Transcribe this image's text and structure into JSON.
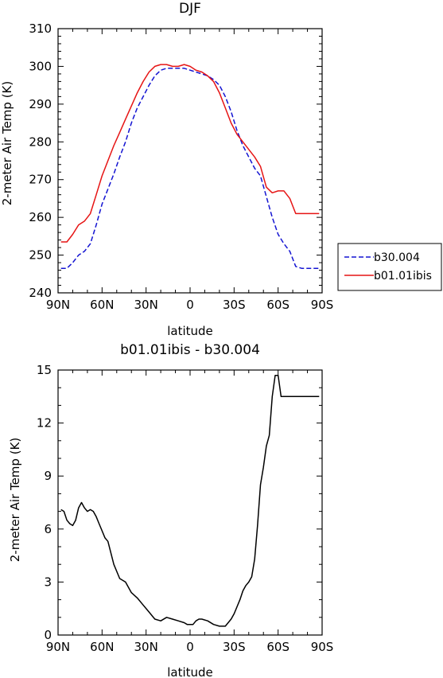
{
  "chart_data": [
    {
      "type": "line",
      "title": "DJF",
      "xlabel": "latitude",
      "ylabel": "2-meter Air Temp (K)",
      "x_tick_labels": [
        "90N",
        "60N",
        "30N",
        "0",
        "30S",
        "60S",
        "90S"
      ],
      "x_ticks": [
        90,
        60,
        30,
        0,
        -30,
        -60,
        -90
      ],
      "xlim": [
        90,
        -90
      ],
      "ylim": [
        240,
        310
      ],
      "y_ticks": [
        240,
        250,
        260,
        270,
        280,
        290,
        300,
        310
      ],
      "grid": false,
      "legend_placement": "right",
      "series": [
        {
          "name": "b30.004",
          "color": "#1414d2",
          "dash": "dashed",
          "x": [
            88,
            84,
            80,
            76,
            72,
            68,
            64,
            60,
            56,
            52,
            48,
            44,
            40,
            36,
            32,
            28,
            24,
            20,
            16,
            12,
            8,
            4,
            0,
            -4,
            -8,
            -12,
            -16,
            -20,
            -24,
            -28,
            -32,
            -36,
            -40,
            -44,
            -48,
            -52,
            -56,
            -60,
            -64,
            -68,
            -72,
            -76,
            -80,
            -84,
            -88
          ],
          "y": [
            246.5,
            246.5,
            248.0,
            250.0,
            251.0,
            253.0,
            258.0,
            263.5,
            267.5,
            271.5,
            276.0,
            280.0,
            285.0,
            289.0,
            292.0,
            295.0,
            297.5,
            299.0,
            299.5,
            299.5,
            299.5,
            299.5,
            299.0,
            298.5,
            298.0,
            297.5,
            296.5,
            295.0,
            292.0,
            288.0,
            283.0,
            279.0,
            276.0,
            273.0,
            271.0,
            265.5,
            260.0,
            255.5,
            253.0,
            251.0,
            247.0,
            246.5,
            246.5,
            246.5,
            246.5
          ]
        },
        {
          "name": "b01.01ibis",
          "color": "#e61414",
          "dash": "solid",
          "x": [
            88,
            84,
            80,
            76,
            72,
            68,
            64,
            60,
            56,
            52,
            48,
            44,
            40,
            36,
            32,
            28,
            24,
            20,
            16,
            12,
            8,
            4,
            0,
            -4,
            -8,
            -12,
            -16,
            -20,
            -24,
            -28,
            -32,
            -36,
            -40,
            -44,
            -48,
            -52,
            -56,
            -60,
            -64,
            -68,
            -72,
            -76,
            -80,
            -84,
            -88
          ],
          "y": [
            253.5,
            253.5,
            255.5,
            258.0,
            259.0,
            261.0,
            266.0,
            271.0,
            275.0,
            279.0,
            282.5,
            286.0,
            289.5,
            293.0,
            296.0,
            298.5,
            300.0,
            300.5,
            300.5,
            300.0,
            300.0,
            300.5,
            300.0,
            299.0,
            298.5,
            297.5,
            296.0,
            293.0,
            289.0,
            285.0,
            282.0,
            280.0,
            278.0,
            276.0,
            273.5,
            268.0,
            266.5,
            267.0,
            267.0,
            265.0,
            261.0,
            261.0,
            261.0,
            261.0,
            261.0
          ]
        }
      ]
    },
    {
      "type": "line",
      "title": "b01.01ibis - b30.004",
      "xlabel": "latitude",
      "ylabel": "2-meter Air Temp (K)",
      "x_tick_labels": [
        "90N",
        "60N",
        "30N",
        "0",
        "30S",
        "60S",
        "90S"
      ],
      "x_ticks": [
        90,
        60,
        30,
        0,
        -30,
        -60,
        -90
      ],
      "xlim": [
        90,
        -90
      ],
      "ylim": [
        0,
        15
      ],
      "y_ticks": [
        0,
        3,
        6,
        9,
        12,
        15
      ],
      "grid": false,
      "series": [
        {
          "color": "#000000",
          "x": [
            88,
            86,
            84,
            82,
            80,
            78,
            76,
            74,
            72,
            70,
            68,
            66,
            64,
            62,
            60,
            58,
            56,
            52,
            48,
            44,
            40,
            36,
            32,
            28,
            24,
            20,
            16,
            12,
            8,
            4,
            2,
            0,
            -2,
            -4,
            -6,
            -8,
            -12,
            -16,
            -20,
            -24,
            -28,
            -30,
            -32,
            -34,
            -36,
            -38,
            -40,
            -42,
            -44,
            -46,
            -48,
            -50,
            -52,
            -54,
            -56,
            -58,
            -60,
            -62,
            -64,
            -66,
            -68,
            -70,
            -72,
            -74,
            -76,
            -78,
            -80,
            -82,
            -84,
            -86,
            -88
          ],
          "y": [
            7.1,
            7.0,
            6.5,
            6.3,
            6.2,
            6.5,
            7.2,
            7.5,
            7.2,
            7.0,
            7.1,
            7.0,
            6.7,
            6.3,
            5.9,
            5.5,
            5.3,
            4.0,
            3.2,
            3.0,
            2.4,
            2.1,
            1.7,
            1.3,
            0.9,
            0.8,
            1.0,
            0.9,
            0.8,
            0.7,
            0.6,
            0.6,
            0.6,
            0.8,
            0.9,
            0.9,
            0.8,
            0.6,
            0.5,
            0.5,
            0.9,
            1.2,
            1.6,
            2.0,
            2.5,
            2.8,
            3.0,
            3.3,
            4.3,
            6.2,
            8.5,
            9.5,
            10.7,
            11.3,
            13.5,
            14.7,
            14.7,
            13.5,
            13.5,
            13.5,
            13.5,
            13.5,
            13.5,
            13.5,
            13.5,
            13.5,
            13.5,
            13.5,
            13.5,
            13.5,
            13.5
          ]
        }
      ]
    }
  ]
}
